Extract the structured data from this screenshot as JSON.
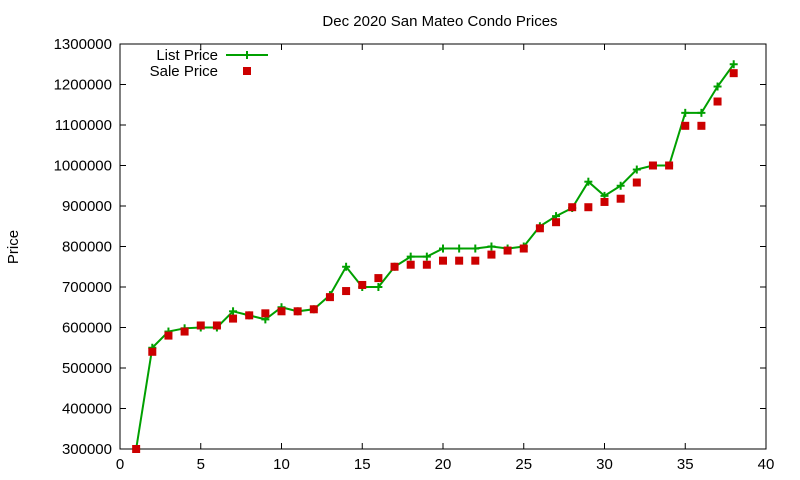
{
  "chart_data": {
    "type": "line",
    "title": "Dec 2020 San Mateo Condo Prices",
    "xlabel": "",
    "ylabel": "Price",
    "xlim": [
      0,
      40
    ],
    "ylim": [
      300000,
      1300000
    ],
    "xticks": [
      0,
      5,
      10,
      15,
      20,
      25,
      30,
      35,
      40
    ],
    "yticks": [
      300000,
      400000,
      500000,
      600000,
      700000,
      800000,
      900000,
      1000000,
      1100000,
      1200000,
      1300000
    ],
    "grid": false,
    "legend_position": "top-left",
    "x": [
      1,
      2,
      3,
      4,
      5,
      6,
      7,
      8,
      9,
      10,
      11,
      12,
      13,
      14,
      15,
      16,
      17,
      18,
      19,
      20,
      21,
      22,
      23,
      24,
      25,
      26,
      27,
      28,
      29,
      30,
      31,
      32,
      33,
      34,
      35,
      36,
      37,
      38
    ],
    "series": [
      {
        "name": "List Price",
        "style": "line-plus",
        "color": "#00a000",
        "values": [
          300000,
          550000,
          590000,
          598000,
          600000,
          600000,
          640000,
          630000,
          620000,
          650000,
          640000,
          645000,
          680000,
          750000,
          700000,
          700000,
          750000,
          775000,
          775000,
          795000,
          795000,
          795000,
          800000,
          795000,
          800000,
          850000,
          875000,
          895000,
          960000,
          925000,
          950000,
          990000,
          1000000,
          1000000,
          1130000,
          1130000,
          1195000,
          1250000
        ]
      },
      {
        "name": "Sale Price",
        "style": "square",
        "color": "#cc0000",
        "values": [
          300000,
          540000,
          580000,
          590000,
          605000,
          605000,
          622000,
          630000,
          635000,
          640000,
          640000,
          645000,
          675000,
          690000,
          705000,
          722000,
          750000,
          755000,
          755000,
          765000,
          765000,
          765000,
          780000,
          790000,
          795000,
          845000,
          860000,
          897000,
          897000,
          910000,
          918000,
          958000,
          1000000,
          1000000,
          1098000,
          1098000,
          1158000,
          1228000
        ]
      }
    ]
  }
}
